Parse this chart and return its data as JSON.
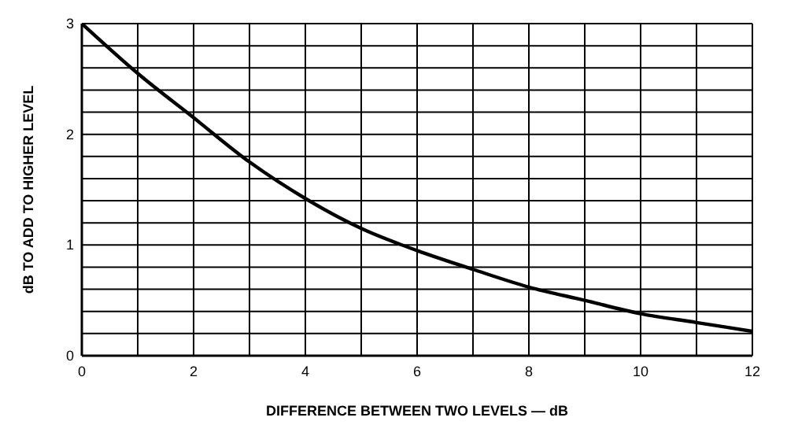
{
  "chart_data": {
    "type": "line",
    "xlabel": "DIFFERENCE BETWEEN TWO LEVELS — dB",
    "ylabel": "dB TO ADD TO HIGHER LEVEL",
    "x": [
      0,
      1,
      2,
      3,
      4,
      5,
      6,
      7,
      8,
      9,
      10,
      11,
      12
    ],
    "series": [
      {
        "color": "#000000",
        "values": [
          3.0,
          2.55,
          2.15,
          1.75,
          1.42,
          1.15,
          0.95,
          0.78,
          0.62,
          0.5,
          0.38,
          0.3,
          0.22
        ]
      }
    ],
    "xlim": [
      0,
      12
    ],
    "ylim": [
      0,
      3
    ],
    "xticks": [
      0,
      {
        "value": 1,
        "label": null
      },
      2,
      {
        "value": 3,
        "label": null
      },
      4,
      {
        "value": 5,
        "label": null
      },
      6,
      {
        "value": 7,
        "label": null
      },
      8,
      {
        "value": 9,
        "label": null
      },
      10,
      {
        "value": 11,
        "label": null
      },
      12
    ],
    "yticks": [
      0,
      {
        "value": 0.2,
        "label": null
      },
      {
        "value": 0.4,
        "label": null
      },
      {
        "value": 0.6,
        "label": null
      },
      {
        "value": 0.8,
        "label": null
      },
      1,
      {
        "value": 1.2,
        "label": null
      },
      {
        "value": 1.4,
        "label": null
      },
      {
        "value": 1.6,
        "label": null
      },
      {
        "value": 1.8,
        "label": null
      },
      2,
      {
        "value": 2.2,
        "label": null
      },
      {
        "value": 2.4,
        "label": null
      },
      {
        "value": 2.6,
        "label": null
      },
      {
        "value": 2.8,
        "label": null
      },
      3
    ],
    "grid": true,
    "marker": "none",
    "line_style": "solid",
    "legend": false
  }
}
